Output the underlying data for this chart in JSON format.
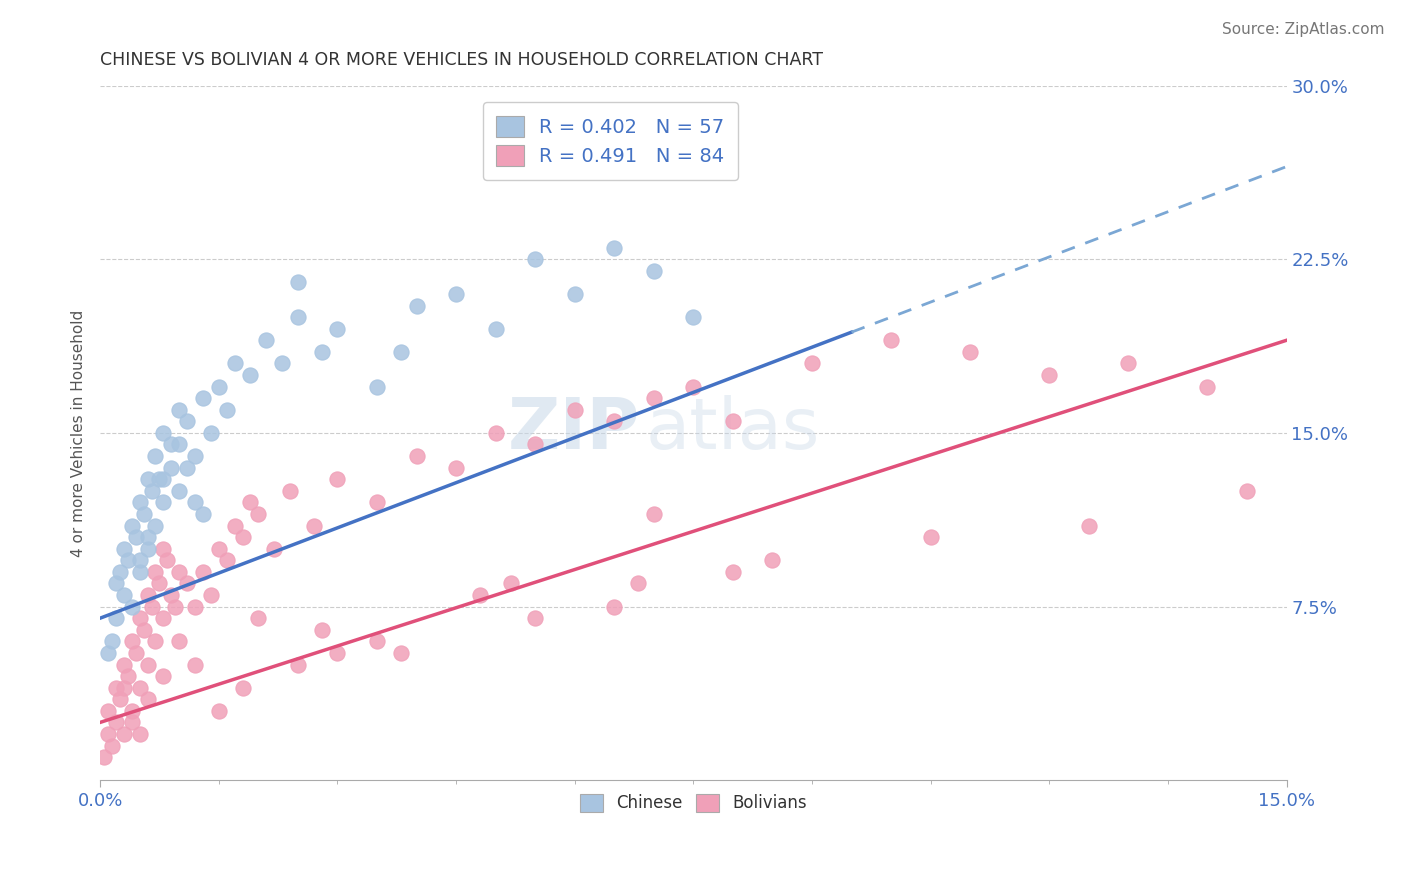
{
  "title": "CHINESE VS BOLIVIAN 4 OR MORE VEHICLES IN HOUSEHOLD CORRELATION CHART",
  "source": "Source: ZipAtlas.com",
  "ylabel": "4 or more Vehicles in Household",
  "legend_chinese": "R = 0.402   N = 57",
  "legend_bolivian": "R = 0.491   N = 84",
  "x_min": 0.0,
  "x_max": 15.0,
  "y_min": 0.0,
  "y_max": 30.0,
  "y_ticks_right": [
    7.5,
    15.0,
    22.5,
    30.0
  ],
  "y_tick_labels_right": [
    "7.5%",
    "15.0%",
    "22.5%",
    "30.0%"
  ],
  "color_chinese": "#a8c4e0",
  "color_bolivian": "#f0a0b8",
  "color_trend_chinese": "#4472c4",
  "color_trend_bolivian": "#e0507a",
  "color_dashed": "#7ba7d4",
  "background_color": "#ffffff",
  "watermark_line1": "ZIP",
  "watermark_line2": "atlas",
  "chinese_intercept": 7.0,
  "chinese_slope": 1.3,
  "bolivian_intercept": 2.5,
  "bolivian_slope": 1.1,
  "chinese_x": [
    0.1,
    0.15,
    0.2,
    0.2,
    0.25,
    0.3,
    0.3,
    0.35,
    0.4,
    0.4,
    0.45,
    0.5,
    0.5,
    0.55,
    0.6,
    0.6,
    0.65,
    0.7,
    0.7,
    0.75,
    0.8,
    0.8,
    0.9,
    0.9,
    1.0,
    1.0,
    1.1,
    1.2,
    1.3,
    1.4,
    1.5,
    1.6,
    1.7,
    1.9,
    2.1,
    2.3,
    2.5,
    2.8,
    3.0,
    3.5,
    4.0,
    4.5,
    5.0,
    5.5,
    6.0,
    6.5,
    7.5,
    1.0,
    1.1,
    1.2,
    1.3,
    0.8,
    0.6,
    0.5,
    2.5,
    3.8,
    7.0
  ],
  "chinese_y": [
    5.5,
    6.0,
    7.0,
    8.5,
    9.0,
    8.0,
    10.0,
    9.5,
    7.5,
    11.0,
    10.5,
    9.0,
    12.0,
    11.5,
    10.0,
    13.0,
    12.5,
    11.0,
    14.0,
    13.0,
    12.0,
    15.0,
    13.5,
    14.5,
    12.5,
    16.0,
    15.5,
    14.0,
    16.5,
    15.0,
    17.0,
    16.0,
    18.0,
    17.5,
    19.0,
    18.0,
    20.0,
    18.5,
    19.5,
    17.0,
    20.5,
    21.0,
    19.5,
    22.5,
    21.0,
    23.0,
    20.0,
    14.5,
    13.5,
    12.0,
    11.5,
    13.0,
    10.5,
    9.5,
    21.5,
    18.5,
    22.0
  ],
  "bolivian_x": [
    0.05,
    0.1,
    0.1,
    0.15,
    0.2,
    0.2,
    0.25,
    0.3,
    0.3,
    0.35,
    0.4,
    0.4,
    0.45,
    0.5,
    0.5,
    0.55,
    0.6,
    0.6,
    0.65,
    0.7,
    0.7,
    0.75,
    0.8,
    0.8,
    0.85,
    0.9,
    0.95,
    1.0,
    1.0,
    1.1,
    1.2,
    1.3,
    1.4,
    1.5,
    1.6,
    1.7,
    1.8,
    1.9,
    2.0,
    2.2,
    2.4,
    2.7,
    3.0,
    3.5,
    4.0,
    4.5,
    5.0,
    5.5,
    6.0,
    6.5,
    7.0,
    7.5,
    8.0,
    9.0,
    10.0,
    11.0,
    12.0,
    13.0,
    14.0,
    5.5,
    6.8,
    8.5,
    3.0,
    3.5,
    4.8,
    2.5,
    7.0,
    0.4,
    0.6,
    1.2,
    2.0,
    0.3,
    0.5,
    1.5,
    2.8,
    3.8,
    5.2,
    6.5,
    8.0,
    10.5,
    12.5,
    14.5,
    0.8,
    1.8
  ],
  "bolivian_y": [
    1.0,
    2.0,
    3.0,
    1.5,
    2.5,
    4.0,
    3.5,
    2.0,
    5.0,
    4.5,
    3.0,
    6.0,
    5.5,
    4.0,
    7.0,
    6.5,
    5.0,
    8.0,
    7.5,
    6.0,
    9.0,
    8.5,
    7.0,
    10.0,
    9.5,
    8.0,
    7.5,
    6.0,
    9.0,
    8.5,
    7.5,
    9.0,
    8.0,
    10.0,
    9.5,
    11.0,
    10.5,
    12.0,
    11.5,
    10.0,
    12.5,
    11.0,
    13.0,
    12.0,
    14.0,
    13.5,
    15.0,
    14.5,
    16.0,
    15.5,
    16.5,
    17.0,
    15.5,
    18.0,
    19.0,
    18.5,
    17.5,
    18.0,
    17.0,
    7.0,
    8.5,
    9.5,
    5.5,
    6.0,
    8.0,
    5.0,
    11.5,
    2.5,
    3.5,
    5.0,
    7.0,
    4.0,
    2.0,
    3.0,
    6.5,
    5.5,
    8.5,
    7.5,
    9.0,
    10.5,
    11.0,
    12.5,
    4.5,
    4.0
  ]
}
